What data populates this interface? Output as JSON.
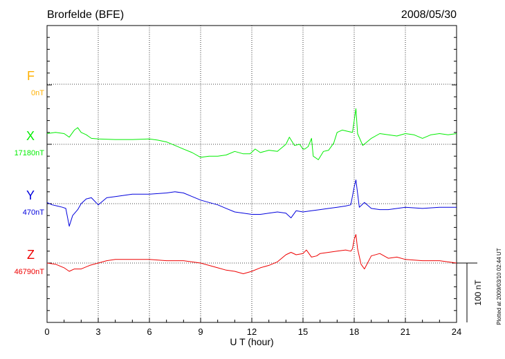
{
  "chart_data": {
    "type": "line",
    "title": "Brorfelde (BFE)",
    "date": "2008/05/30",
    "xlabel": "U T (hour)",
    "xlim": [
      0,
      24
    ],
    "x_ticks": [
      "0",
      "3",
      "6",
      "9",
      "12",
      "15",
      "18",
      "21",
      "24"
    ],
    "scale_label": "100 nT",
    "plotted_note": "Plotted at 2009/03/10 02:44 UT",
    "grid": true,
    "series": [
      {
        "name": "F",
        "baseline_label": "0nT",
        "color": "#ffb000",
        "x": [],
        "y": []
      },
      {
        "name": "X",
        "baseline_label": "17180nT",
        "color": "#00ee00",
        "x": [
          0,
          0.5,
          1.0,
          1.3,
          1.6,
          1.8,
          2.0,
          2.3,
          2.6,
          3.0,
          4,
          5,
          6,
          6.5,
          7,
          7.5,
          8,
          8.5,
          9,
          9.5,
          10,
          10.5,
          11,
          11.5,
          11.9,
          12.2,
          12.5,
          13,
          13.5,
          14,
          14.2,
          14.5,
          14.8,
          15.0,
          15.1,
          15.3,
          15.5,
          15.6,
          15.9,
          16.2,
          16.5,
          16.8,
          17.0,
          17.3,
          17.6,
          17.9,
          18.0,
          18.1,
          18.2,
          18.5,
          19,
          19.5,
          20,
          20.5,
          21,
          21.5,
          22,
          22.5,
          23,
          23.5,
          24
        ],
        "y": [
          18,
          20,
          18,
          12,
          24,
          28,
          20,
          16,
          10,
          9,
          8,
          8,
          9,
          7,
          4,
          -2,
          -8,
          -14,
          -22,
          -20,
          -20,
          -18,
          -12,
          -16,
          -16,
          -8,
          -14,
          -10,
          -12,
          0,
          12,
          -2,
          0,
          -8,
          -8,
          -4,
          10,
          -20,
          -26,
          -12,
          -10,
          2,
          20,
          24,
          22,
          20,
          40,
          60,
          18,
          -2,
          10,
          18,
          16,
          14,
          18,
          16,
          10,
          16,
          18,
          16,
          18
        ]
      },
      {
        "name": "Y",
        "baseline_label": "470nT",
        "color": "#0000dd",
        "x": [
          0,
          0.3,
          0.6,
          0.9,
          1.1,
          1.3,
          1.5,
          1.8,
          2.0,
          2.3,
          2.6,
          3.0,
          3.5,
          4,
          4.5,
          5,
          6,
          7,
          7.5,
          8,
          8.5,
          9,
          9.5,
          10,
          10.5,
          11,
          11.5,
          12,
          12.5,
          13,
          13.5,
          14,
          14.3,
          14.6,
          15,
          15.5,
          16,
          16.5,
          17,
          17.5,
          17.8,
          18.0,
          18.1,
          18.3,
          18.6,
          19,
          19.5,
          20,
          21,
          22,
          23,
          24
        ],
        "y": [
          2,
          -2,
          -4,
          -6,
          -8,
          -38,
          -20,
          -10,
          0,
          8,
          10,
          -2,
          10,
          12,
          14,
          16,
          16,
          18,
          20,
          18,
          12,
          6,
          2,
          -2,
          -8,
          -14,
          -16,
          -18,
          -18,
          -16,
          -14,
          -16,
          -24,
          -12,
          -14,
          -12,
          -10,
          -8,
          -6,
          -4,
          -2,
          28,
          40,
          -6,
          2,
          -8,
          -10,
          -10,
          -6,
          -8,
          -6,
          -6
        ]
      },
      {
        "name": "Z",
        "baseline_label": "46790nT",
        "color": "#ee0000",
        "x": [
          0,
          0.5,
          1.0,
          1.3,
          1.6,
          2,
          2.5,
          3,
          3.5,
          4,
          5,
          6,
          7,
          8,
          9,
          10,
          10.5,
          11,
          11.5,
          12,
          12.5,
          13,
          13.5,
          14,
          14.3,
          14.6,
          15,
          15.2,
          15.5,
          15.8,
          16,
          16.5,
          17,
          17.5,
          17.8,
          17.9,
          18.0,
          18.1,
          18.2,
          18.4,
          18.6,
          19,
          19.5,
          20,
          20.5,
          21,
          22,
          23,
          24
        ],
        "y": [
          0,
          -2,
          -8,
          -14,
          -10,
          -10,
          -4,
          0,
          4,
          6,
          6,
          6,
          4,
          4,
          0,
          -8,
          -12,
          -14,
          -18,
          -14,
          -8,
          -4,
          2,
          14,
          18,
          14,
          16,
          22,
          10,
          12,
          16,
          18,
          20,
          22,
          20,
          24,
          40,
          48,
          24,
          -2,
          -10,
          12,
          16,
          8,
          10,
          6,
          4,
          4,
          0
        ]
      }
    ]
  }
}
